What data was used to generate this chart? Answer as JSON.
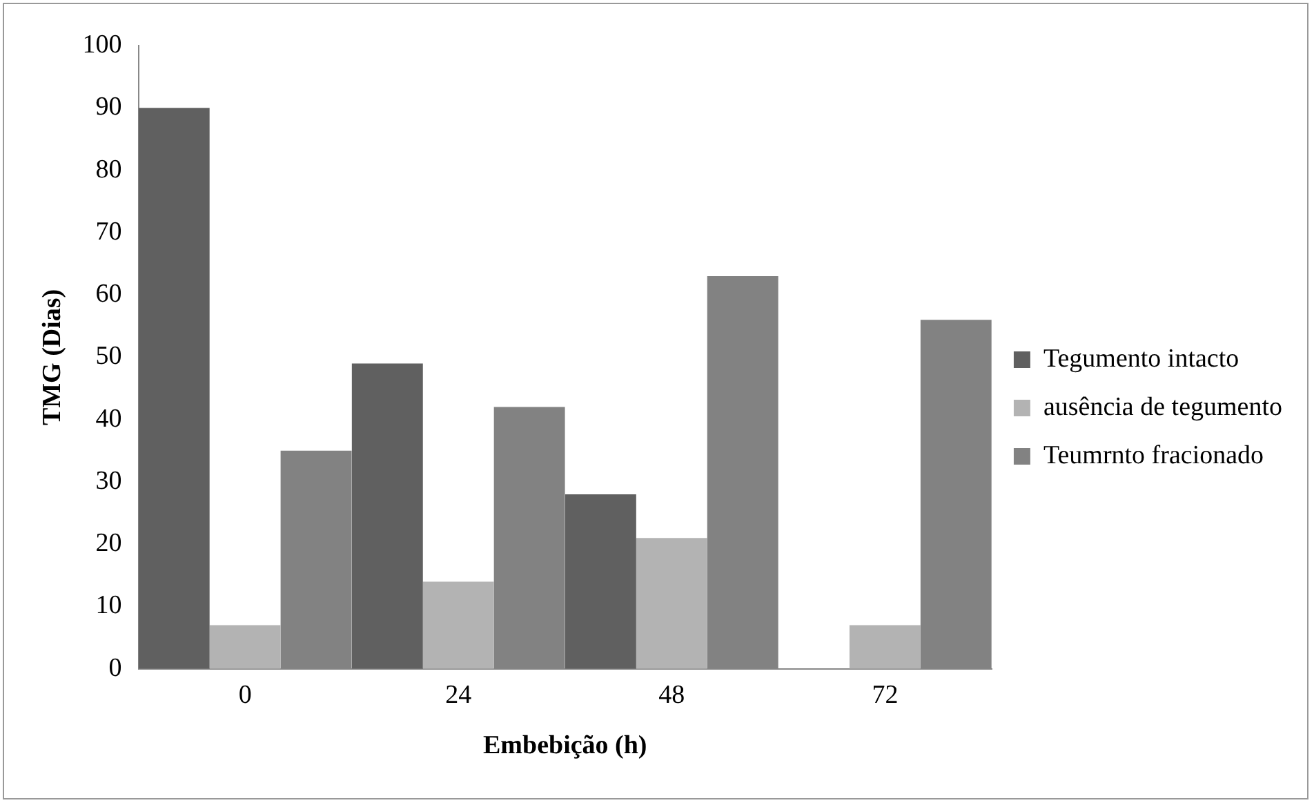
{
  "chart_data": {
    "type": "bar",
    "xlabel": "Embebição (h)",
    "ylabel": "TMG (Dias)",
    "categories": [
      "0",
      "24",
      "48",
      "72"
    ],
    "series": [
      {
        "name": "Tegumento intacto",
        "color": "#606060",
        "values": [
          90,
          49,
          28,
          0
        ]
      },
      {
        "name": "ausência de tegumento",
        "color": "#b3b3b3",
        "values": [
          7,
          14,
          21,
          7
        ]
      },
      {
        "name": "Teumrnto fracionado",
        "color": "#828282",
        "values": [
          35,
          42,
          63,
          56
        ]
      }
    ],
    "ylim": [
      0,
      100
    ],
    "yticks": [
      0,
      10,
      20,
      30,
      40,
      50,
      60,
      70,
      80,
      90,
      100
    ],
    "grid": false,
    "legend": "right"
  }
}
